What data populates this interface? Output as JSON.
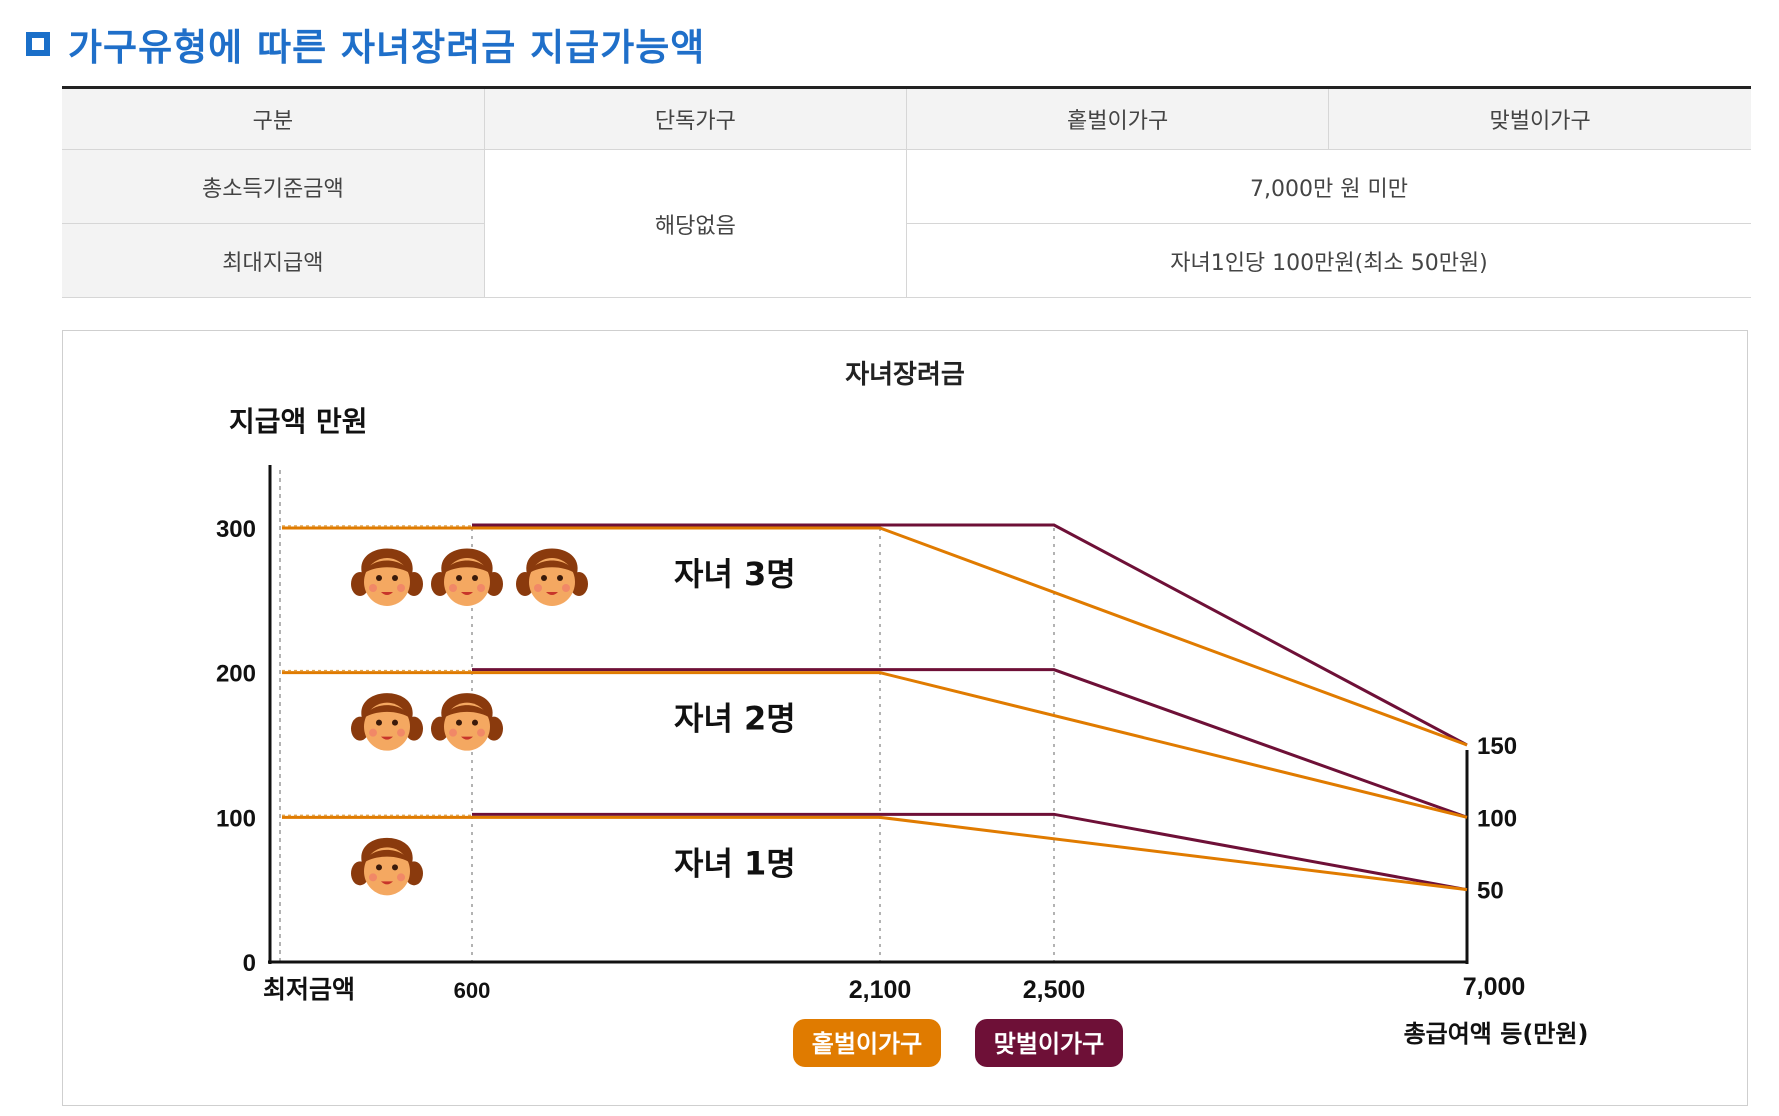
{
  "heading": "가구유형에 따른 자녀장려금 지급가능액",
  "table": {
    "header": [
      "구분",
      "단독가구",
      "홑벌이가구",
      "맞벌이가구"
    ],
    "rows": [
      {
        "label": "총소득기준금액",
        "value": "7,000만 원 미만"
      },
      {
        "label": "최대지급액",
        "value": "자녀1인당 100만원(최소 50만원)"
      }
    ],
    "single_household": "해당없음"
  },
  "chart_data": {
    "type": "line",
    "title": "자녀장려금",
    "ylabel": "지급액 만원",
    "xlabel": "총급여액 등(만원)",
    "x_ticks": [
      "최저금액",
      "600",
      "2,100",
      "2,500",
      "7,000"
    ],
    "y_ticks": [
      "0",
      "100",
      "200",
      "300"
    ],
    "right_ticks": [
      "50",
      "100",
      "150"
    ],
    "ylim": [
      0,
      300
    ],
    "legend": [
      "홑벌이가구",
      "맞벌이가구"
    ],
    "colors": {
      "single_income": "#e07b00",
      "dual_income": "#6e1037"
    },
    "groups": [
      {
        "label": "자녀 3명",
        "children": 3,
        "single_income": {
          "x": [
            0,
            2100,
            7000
          ],
          "y": [
            300,
            300,
            150
          ]
        },
        "dual_income": {
          "x": [
            600,
            2500,
            7000
          ],
          "y": [
            300,
            300,
            150
          ]
        }
      },
      {
        "label": "자녀 2명",
        "children": 2,
        "single_income": {
          "x": [
            0,
            2100,
            7000
          ],
          "y": [
            200,
            200,
            100
          ]
        },
        "dual_income": {
          "x": [
            600,
            2500,
            7000
          ],
          "y": [
            200,
            200,
            100
          ]
        }
      },
      {
        "label": "자녀 1명",
        "children": 1,
        "single_income": {
          "x": [
            0,
            2100,
            7000
          ],
          "y": [
            100,
            100,
            50
          ]
        },
        "dual_income": {
          "x": [
            600,
            2500,
            7000
          ],
          "y": [
            100,
            100,
            50
          ]
        }
      }
    ]
  }
}
